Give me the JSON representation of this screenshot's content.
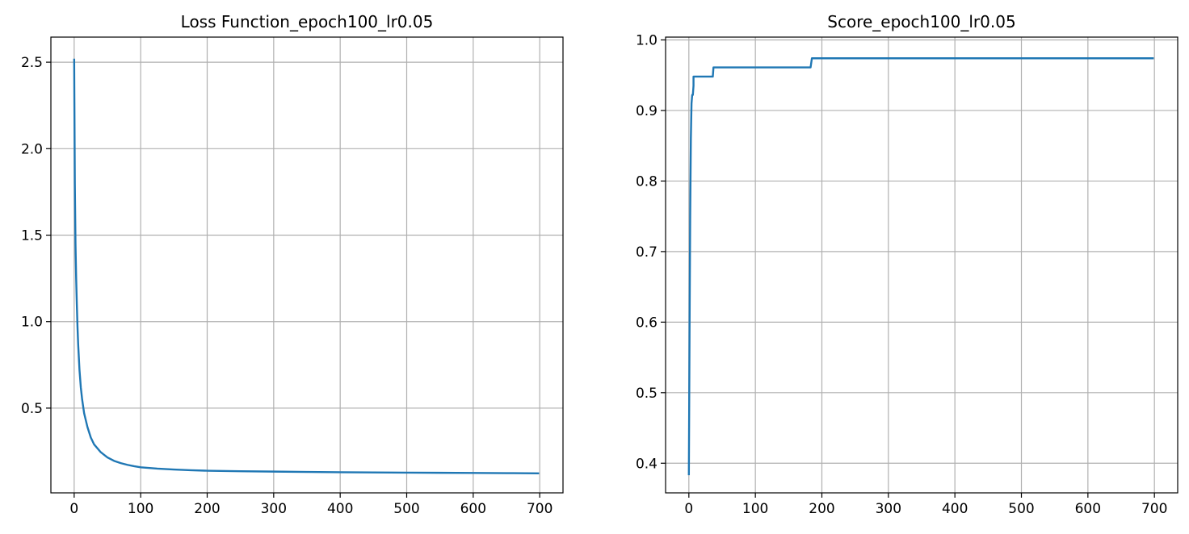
{
  "chart_data": [
    {
      "type": "line",
      "title": "Loss Function_epoch100_lr0.05",
      "xlabel": "",
      "ylabel": "",
      "xlim": [
        -35,
        735
      ],
      "ylim": [
        0.01,
        2.645
      ],
      "xticks": [
        0,
        100,
        200,
        300,
        400,
        500,
        600,
        700
      ],
      "yticks": [
        0.5,
        1.0,
        1.5,
        2.0,
        2.5
      ],
      "xtick_labels": [
        "0",
        "100",
        "200",
        "300",
        "400",
        "500",
        "600",
        "700"
      ],
      "ytick_labels": [
        "0.5",
        "1.0",
        "1.5",
        "2.0",
        "2.5"
      ],
      "grid": true,
      "series_color": "#1f77b4",
      "x": [
        0,
        1,
        2,
        3,
        4,
        5,
        6,
        8,
        10,
        12,
        15,
        20,
        25,
        30,
        40,
        50,
        60,
        70,
        80,
        90,
        100,
        125,
        150,
        175,
        200,
        250,
        300,
        350,
        400,
        450,
        500,
        550,
        600,
        650,
        699
      ],
      "y": [
        2.52,
        1.8,
        1.45,
        1.25,
        1.1,
        0.97,
        0.87,
        0.72,
        0.62,
        0.55,
        0.47,
        0.39,
        0.33,
        0.29,
        0.245,
        0.215,
        0.195,
        0.182,
        0.172,
        0.164,
        0.158,
        0.15,
        0.145,
        0.141,
        0.138,
        0.135,
        0.133,
        0.131,
        0.129,
        0.128,
        0.127,
        0.126,
        0.125,
        0.124,
        0.123
      ]
    },
    {
      "type": "line",
      "title": "Score_epoch100_lr0.05",
      "xlabel": "",
      "ylabel": "",
      "xlim": [
        -35,
        735
      ],
      "ylim": [
        0.358,
        1.004
      ],
      "xticks": [
        0,
        100,
        200,
        300,
        400,
        500,
        600,
        700
      ],
      "yticks": [
        0.4,
        0.5,
        0.6,
        0.7,
        0.8,
        0.9,
        1.0
      ],
      "xtick_labels": [
        "0",
        "100",
        "200",
        "300",
        "400",
        "500",
        "600",
        "700"
      ],
      "ytick_labels": [
        "0.4",
        "0.5",
        "0.6",
        "0.7",
        "0.8",
        "0.9",
        "1.0"
      ],
      "grid": true,
      "series_color": "#1f77b4",
      "x": [
        0,
        1,
        2,
        3,
        4,
        5,
        6,
        7,
        7,
        8,
        8,
        36,
        37,
        183,
        185,
        699
      ],
      "y": [
        0.383,
        0.58,
        0.75,
        0.86,
        0.91,
        0.922,
        0.922,
        0.935,
        0.948,
        0.948,
        0.948,
        0.948,
        0.961,
        0.961,
        0.974,
        0.974
      ]
    }
  ]
}
